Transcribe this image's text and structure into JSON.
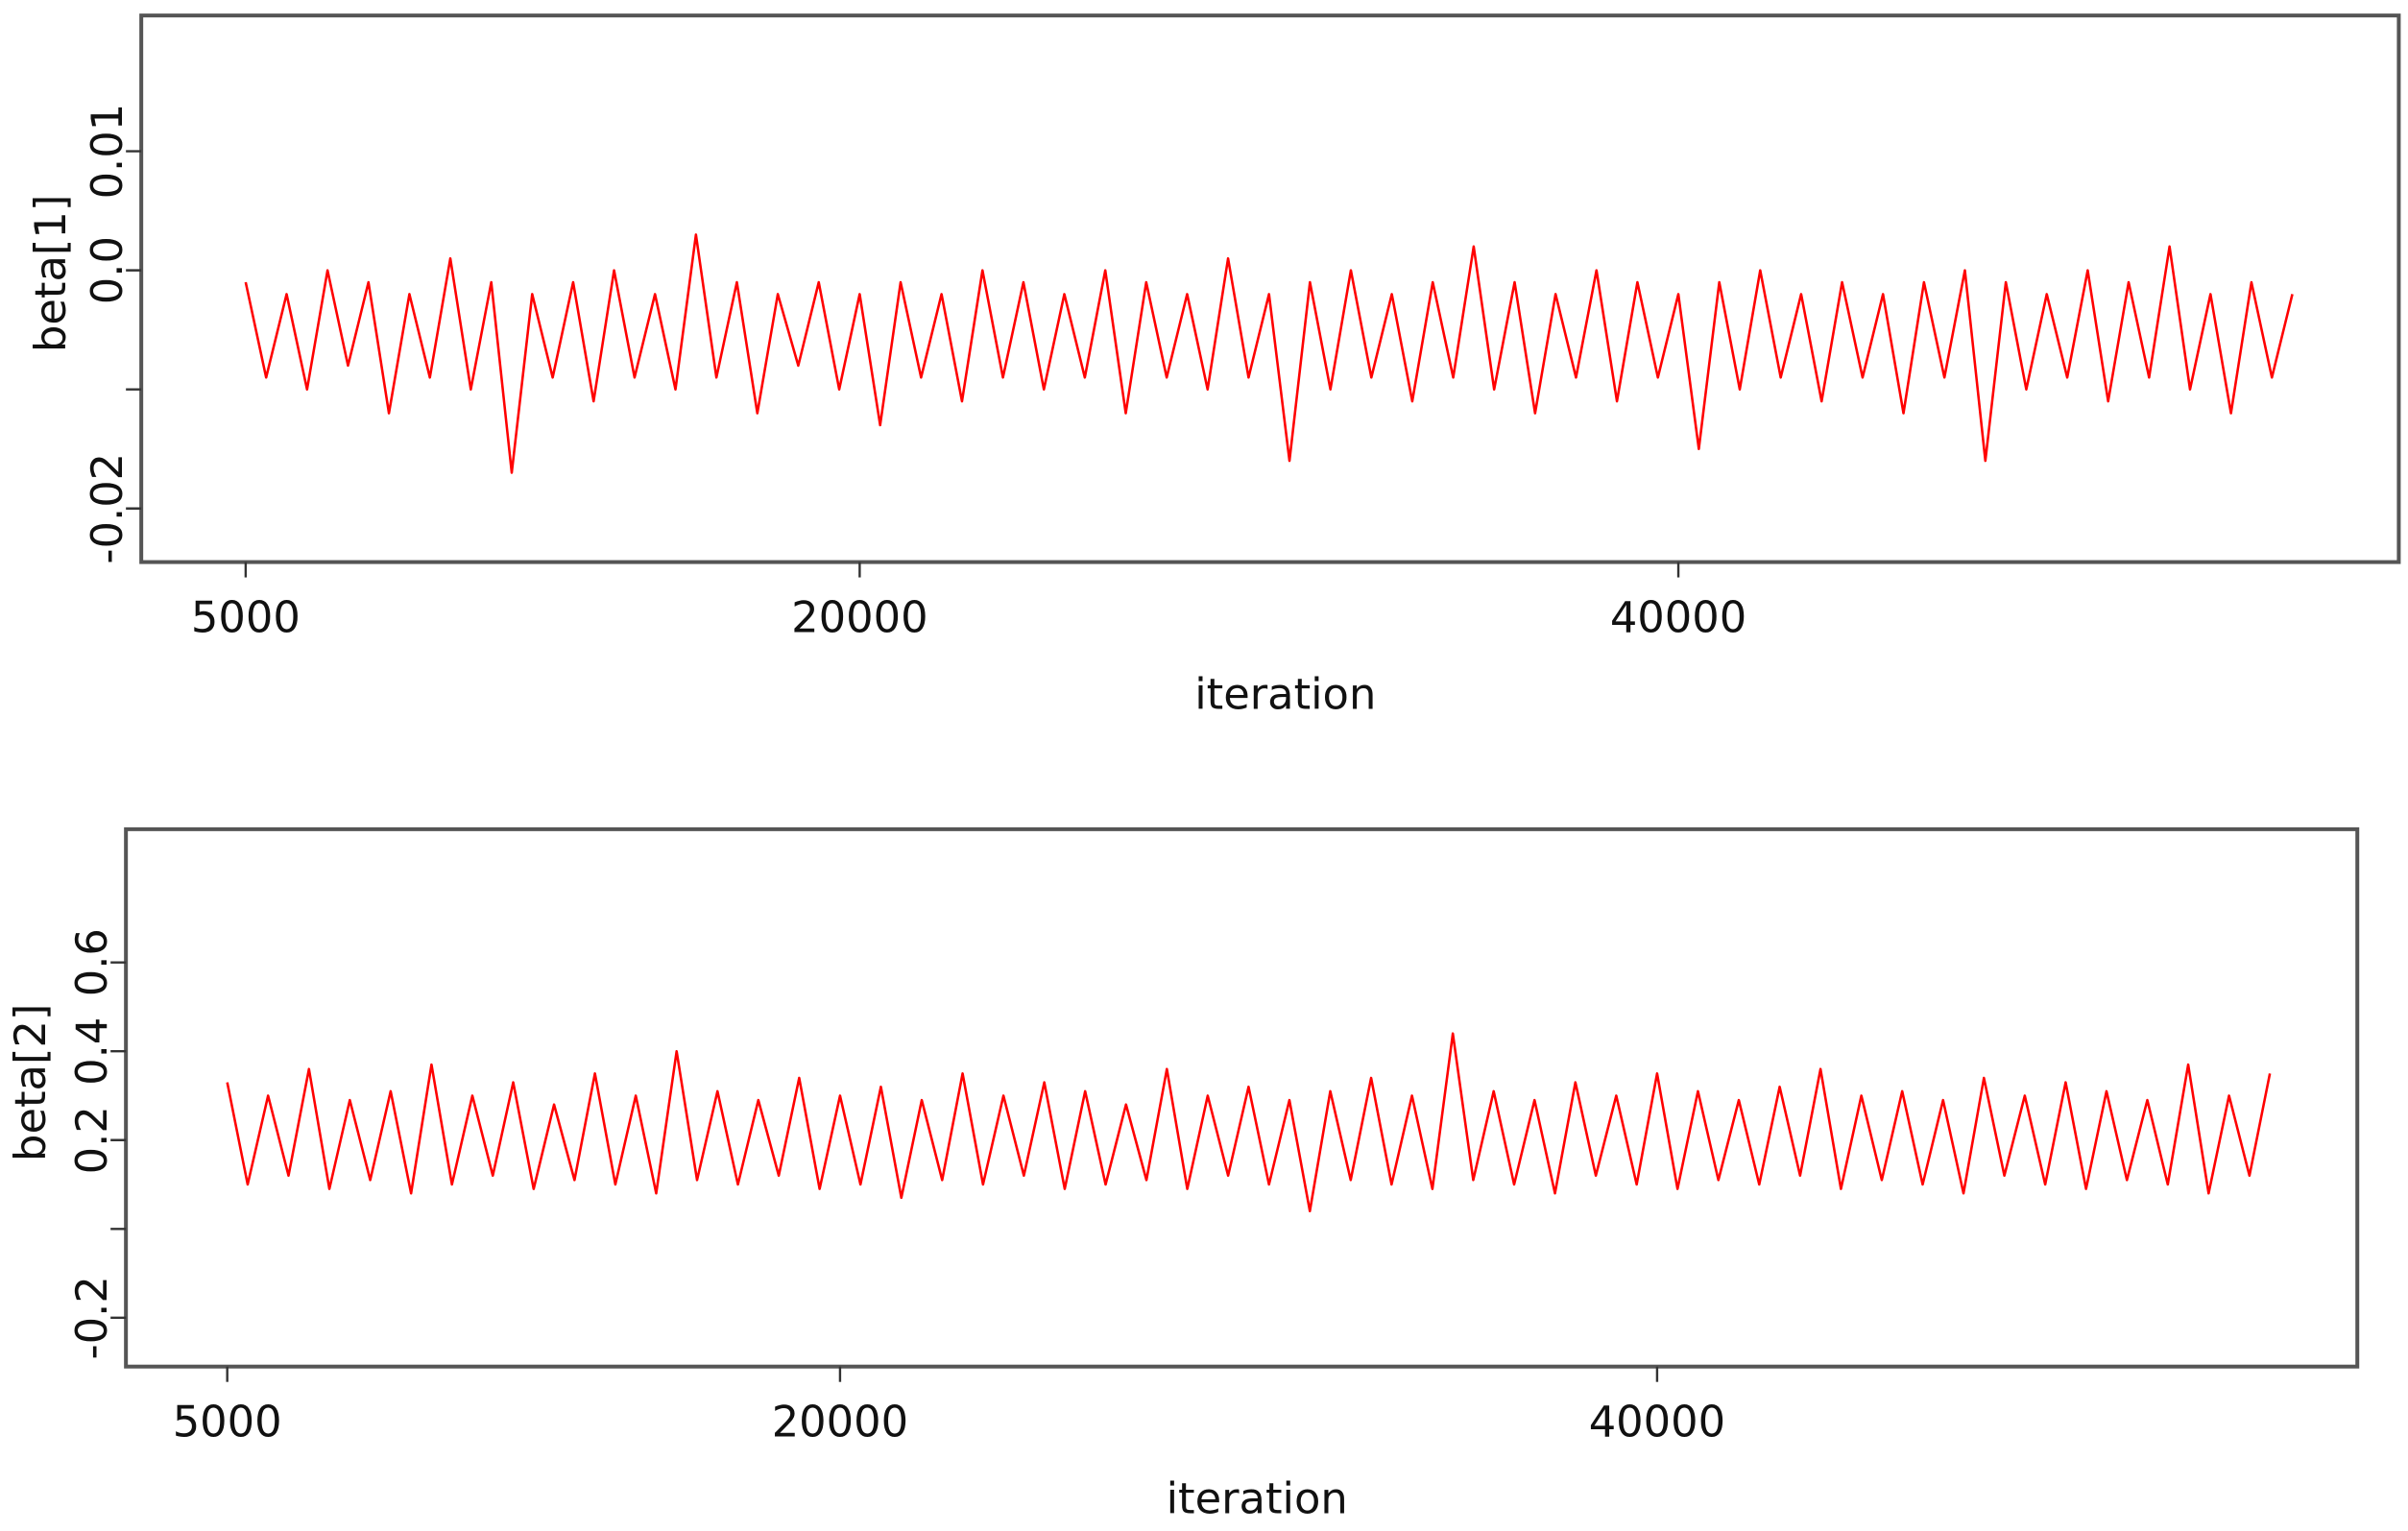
{
  "chart_data": [
    {
      "type": "line",
      "y_label": "beta[1]",
      "x_label": "iteration",
      "color": "#ff0000",
      "xlim": [
        2450,
        57600
      ],
      "ylim": [
        -0.0245,
        0.0214
      ],
      "xticks": [
        5000,
        20000,
        40000
      ],
      "yticks": [
        {
          "value": -0.02,
          "label": "-0.02"
        },
        {
          "value": -0.01,
          "label": null
        },
        {
          "value": 0,
          "label": "0.0"
        },
        0.01
      ],
      "x": [
        5000,
        5500,
        6000,
        6500,
        7000,
        7500,
        8000,
        8500,
        9000,
        9500,
        10000,
        10500,
        11000,
        11500,
        12000,
        12500,
        13000,
        13500,
        14000,
        14500,
        15000,
        15500,
        16000,
        16500,
        17000,
        17500,
        18000,
        18500,
        19000,
        19500,
        20000,
        20500,
        21000,
        21500,
        22000,
        22500,
        23000,
        23500,
        24000,
        24500,
        25000,
        25500,
        26000,
        26500,
        27000,
        27500,
        28000,
        28500,
        29000,
        29500,
        30000,
        30500,
        31000,
        31500,
        32000,
        32500,
        33000,
        33500,
        34000,
        34500,
        35000,
        35500,
        36000,
        36500,
        37000,
        37500,
        38000,
        38500,
        39000,
        39500,
        40000,
        40500,
        41000,
        41500,
        42000,
        42500,
        43000,
        43500,
        44000,
        44500,
        45000,
        45500,
        46000,
        46500,
        47000,
        47500,
        48000,
        48500,
        49000,
        49500,
        50000,
        50500,
        51000,
        51500,
        52000,
        52500,
        53000,
        53500,
        54000,
        54500,
        55000
      ],
      "values": [
        -0.001,
        -0.009,
        -0.002,
        -0.01,
        0.0,
        -0.008,
        -0.001,
        -0.012,
        -0.002,
        -0.009,
        0.001,
        -0.01,
        -0.001,
        -0.017,
        -0.002,
        -0.009,
        -0.001,
        -0.011,
        0.0,
        -0.009,
        -0.002,
        -0.01,
        0.003,
        -0.009,
        -0.001,
        -0.012,
        -0.002,
        -0.008,
        -0.001,
        -0.01,
        -0.002,
        -0.013,
        -0.001,
        -0.009,
        -0.002,
        -0.011,
        0.0,
        -0.009,
        -0.001,
        -0.01,
        -0.002,
        -0.009,
        0.0,
        -0.012,
        -0.001,
        -0.009,
        -0.002,
        -0.01,
        0.001,
        -0.009,
        -0.002,
        -0.016,
        -0.001,
        -0.01,
        0.0,
        -0.009,
        -0.002,
        -0.011,
        -0.001,
        -0.009,
        0.002,
        -0.01,
        -0.001,
        -0.012,
        -0.002,
        -0.009,
        0.0,
        -0.011,
        -0.001,
        -0.009,
        -0.002,
        -0.015,
        -0.001,
        -0.01,
        0.0,
        -0.009,
        -0.002,
        -0.011,
        -0.001,
        -0.009,
        -0.002,
        -0.012,
        -0.001,
        -0.009,
        0.0,
        -0.016,
        -0.001,
        -0.01,
        -0.002,
        -0.009,
        0.0,
        -0.011,
        -0.001,
        -0.009,
        0.002,
        -0.01,
        -0.002,
        -0.012,
        -0.001,
        -0.009,
        -0.002
      ]
    },
    {
      "type": "line",
      "y_label": "beta[2]",
      "x_label": "iteration",
      "color": "#ff0000",
      "xlim": [
        2520,
        57140
      ],
      "ylim": [
        -0.31,
        0.9
      ],
      "xticks": [
        5000,
        20000,
        40000
      ],
      "yticks": [
        -0.2,
        {
          "value": 0,
          "label": null
        },
        0.2,
        0.4,
        0.6
      ],
      "x": [
        5000,
        5500,
        6000,
        6500,
        7000,
        7500,
        8000,
        8500,
        9000,
        9500,
        10000,
        10500,
        11000,
        11500,
        12000,
        12500,
        13000,
        13500,
        14000,
        14500,
        15000,
        15500,
        16000,
        16500,
        17000,
        17500,
        18000,
        18500,
        19000,
        19500,
        20000,
        20500,
        21000,
        21500,
        22000,
        22500,
        23000,
        23500,
        24000,
        24500,
        25000,
        25500,
        26000,
        26500,
        27000,
        27500,
        28000,
        28500,
        29000,
        29500,
        30000,
        30500,
        31000,
        31500,
        32000,
        32500,
        33000,
        33500,
        34000,
        34500,
        35000,
        35500,
        36000,
        36500,
        37000,
        37500,
        38000,
        38500,
        39000,
        39500,
        40000,
        40500,
        41000,
        41500,
        42000,
        42500,
        43000,
        43500,
        44000,
        44500,
        45000,
        45500,
        46000,
        46500,
        47000,
        47500,
        48000,
        48500,
        49000,
        49500,
        50000,
        50500,
        51000,
        51500,
        52000,
        52500,
        53000,
        53500,
        54000,
        54500,
        55000
      ],
      "values": [
        0.33,
        0.1,
        0.3,
        0.12,
        0.36,
        0.09,
        0.29,
        0.11,
        0.31,
        0.08,
        0.37,
        0.1,
        0.3,
        0.12,
        0.33,
        0.09,
        0.28,
        0.11,
        0.35,
        0.1,
        0.3,
        0.08,
        0.4,
        0.11,
        0.31,
        0.1,
        0.29,
        0.12,
        0.34,
        0.09,
        0.3,
        0.1,
        0.32,
        0.07,
        0.29,
        0.11,
        0.35,
        0.1,
        0.3,
        0.12,
        0.33,
        0.09,
        0.31,
        0.1,
        0.28,
        0.11,
        0.36,
        0.09,
        0.3,
        0.12,
        0.32,
        0.1,
        0.29,
        0.04,
        0.31,
        0.11,
        0.34,
        0.1,
        0.3,
        0.09,
        0.44,
        0.11,
        0.31,
        0.1,
        0.29,
        0.08,
        0.33,
        0.12,
        0.3,
        0.1,
        0.35,
        0.09,
        0.31,
        0.11,
        0.29,
        0.1,
        0.32,
        0.12,
        0.36,
        0.09,
        0.3,
        0.11,
        0.31,
        0.1,
        0.29,
        0.08,
        0.34,
        0.12,
        0.3,
        0.1,
        0.33,
        0.09,
        0.31,
        0.11,
        0.29,
        0.1,
        0.37,
        0.08,
        0.3,
        0.12,
        0.35
      ]
    }
  ]
}
